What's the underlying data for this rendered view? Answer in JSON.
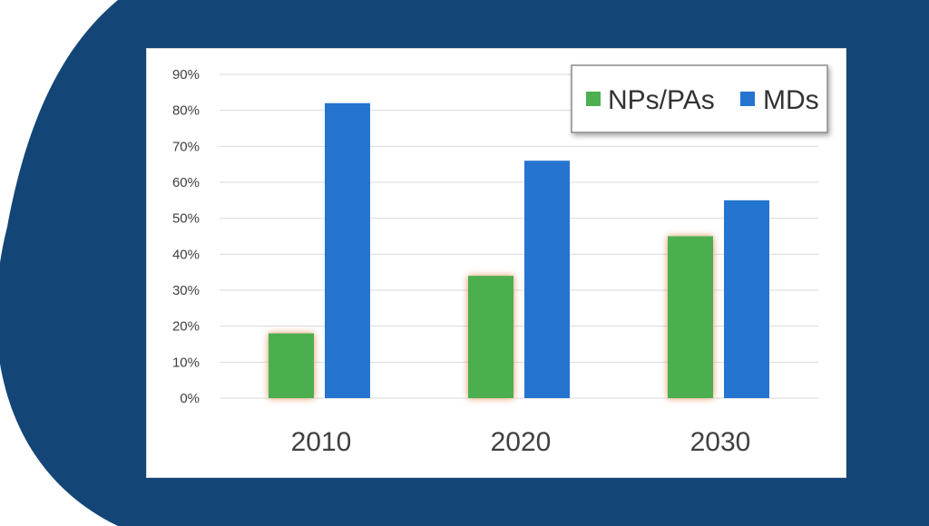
{
  "colors": {
    "background_shape": "#134677",
    "page": "#ffffff",
    "grid": "#d9d9d9",
    "axis_text": "#404040",
    "bar_glow": "#e0884b"
  },
  "chart_data": {
    "type": "bar",
    "categories": [
      "2010",
      "2020",
      "2030"
    ],
    "series": [
      {
        "name": "NPs/PAs",
        "color": "#4caf50",
        "values": [
          18,
          34,
          45
        ]
      },
      {
        "name": "MDs",
        "color": "#2474d0",
        "values": [
          82,
          66,
          55
        ]
      }
    ],
    "title": "",
    "xlabel": "",
    "ylabel": "",
    "ylim": [
      0,
      90
    ],
    "yticks": [
      "0%",
      "10%",
      "20%",
      "30%",
      "40%",
      "50%",
      "60%",
      "70%",
      "80%",
      "90%"
    ],
    "grid": true,
    "legend_position": "top-right"
  }
}
